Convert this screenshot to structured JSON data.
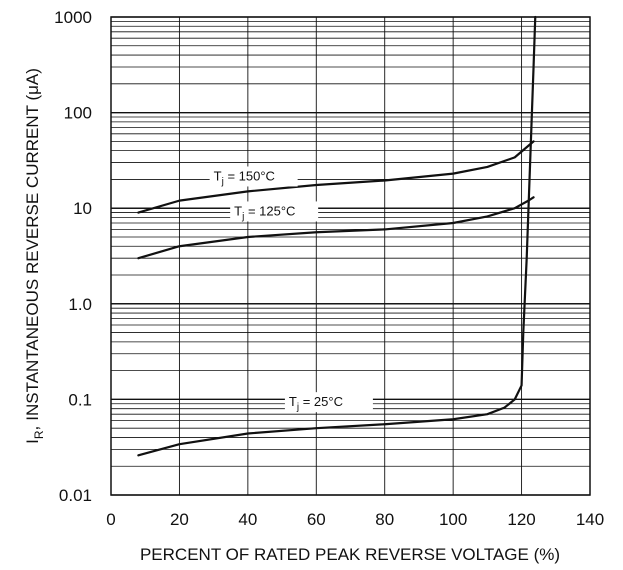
{
  "chart_data": {
    "type": "line",
    "title": "",
    "xlabel": "PERCENT OF RATED PEAK REVERSE VOLTAGE (%)",
    "ylabel": "INSTANTANEOUS REVERSE CURRENT (μA)",
    "ylabel_symbol": "I",
    "ylabel_subscript": "R",
    "ylabel_suffix": ",",
    "x_ticks": [
      "0",
      "20",
      "40",
      "60",
      "80",
      "100",
      "120",
      "140"
    ],
    "y_ticks": [
      "0.01",
      "0.1",
      "1.0",
      "10",
      "100",
      "1000"
    ],
    "xlim": [
      0,
      140
    ],
    "ylim": [
      0.01,
      1000
    ],
    "yscale": "log",
    "grid": true,
    "series": [
      {
        "name": "Tj = 150°C",
        "label_main": "T",
        "label_sub": "j",
        "label_rest": " = 150°C",
        "x": [
          8,
          20,
          40,
          60,
          80,
          100,
          110,
          118,
          122,
          123.5
        ],
        "y": [
          9,
          12,
          15,
          17.5,
          19.5,
          23,
          27,
          34,
          45,
          50
        ]
      },
      {
        "name": "Tj = 125°C",
        "label_main": "T",
        "label_sub": "j",
        "label_rest": " = 125°C",
        "x": [
          8,
          20,
          40,
          60,
          80,
          100,
          110,
          118,
          122,
          123.5
        ],
        "y": [
          3,
          4,
          5,
          5.6,
          6,
          7,
          8.2,
          10,
          12,
          13
        ]
      },
      {
        "name": "Tj = 25°C",
        "label_main": "T",
        "label_sub": "j",
        "label_rest": " = 25°C",
        "x": [
          8,
          20,
          40,
          60,
          80,
          100,
          110,
          115,
          118,
          120,
          120.5,
          121.5,
          122.5,
          123.5,
          124
        ],
        "y": [
          0.026,
          0.034,
          0.044,
          0.05,
          0.055,
          0.062,
          0.07,
          0.082,
          0.1,
          0.14,
          0.5,
          3,
          30,
          300,
          1000
        ]
      }
    ]
  }
}
